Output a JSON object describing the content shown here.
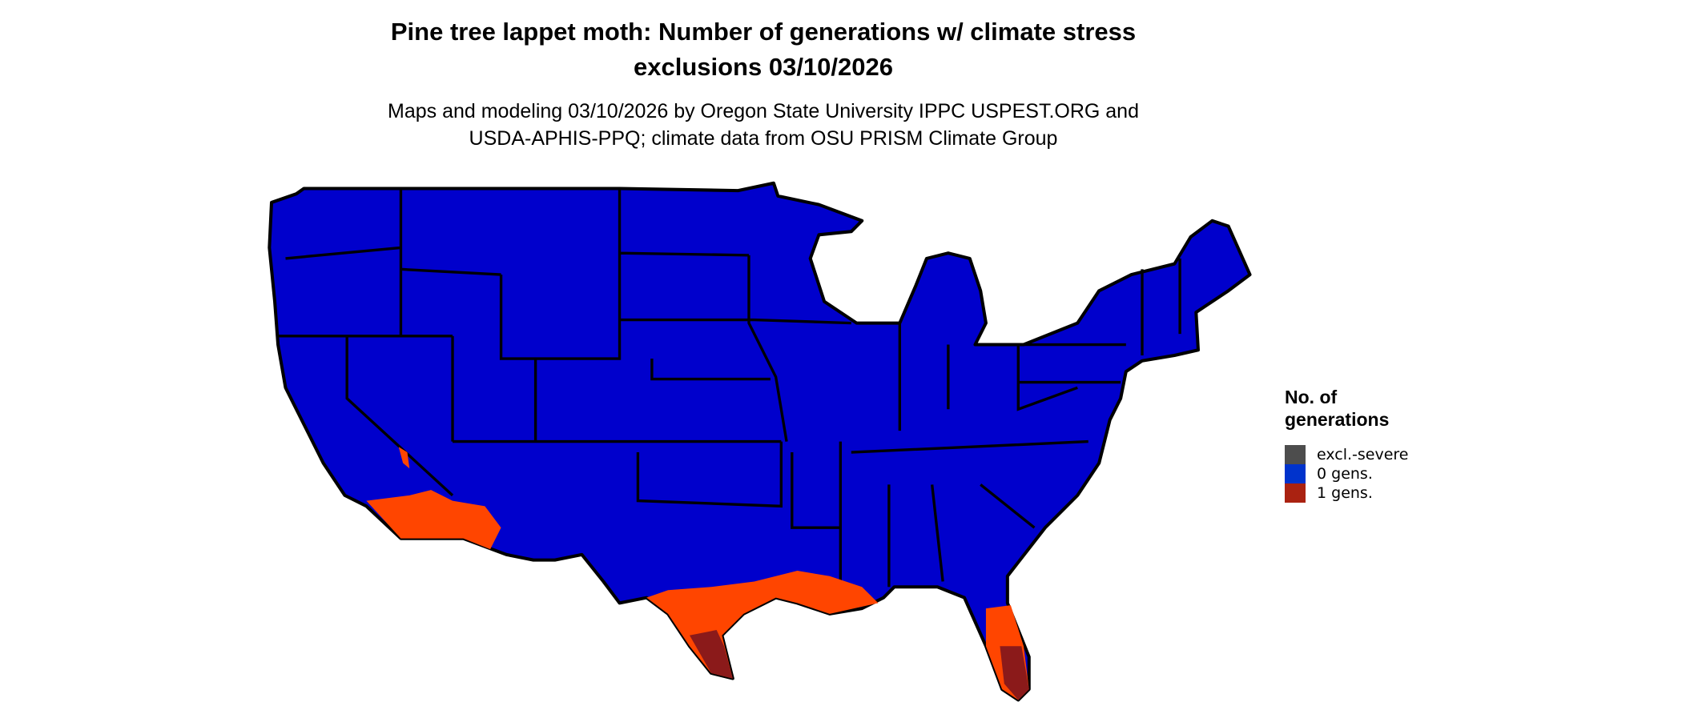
{
  "title": {
    "line1": "Pine tree lappet moth: Number of generations w/ climate stress",
    "line2": "exclusions 03/10/2026"
  },
  "subtitle": {
    "line1": "Maps and modeling 03/10/2026 by Oregon State University IPPC USPEST.ORG and",
    "line2": "USDA-APHIS-PPQ; climate data from OSU PRISM Climate Group"
  },
  "legend": {
    "title_line1": "No. of",
    "title_line2": "generations",
    "items": [
      {
        "label": "excl.-severe",
        "color": "#4d4d4d"
      },
      {
        "label": "0 gens.",
        "color": "#0033cc"
      },
      {
        "label": "1 gens.",
        "color": "#aa2211"
      }
    ]
  },
  "map_colors": {
    "base": "#0000cc",
    "low": "#ff4500",
    "high": "#8b1a1a",
    "border": "#000000"
  }
}
